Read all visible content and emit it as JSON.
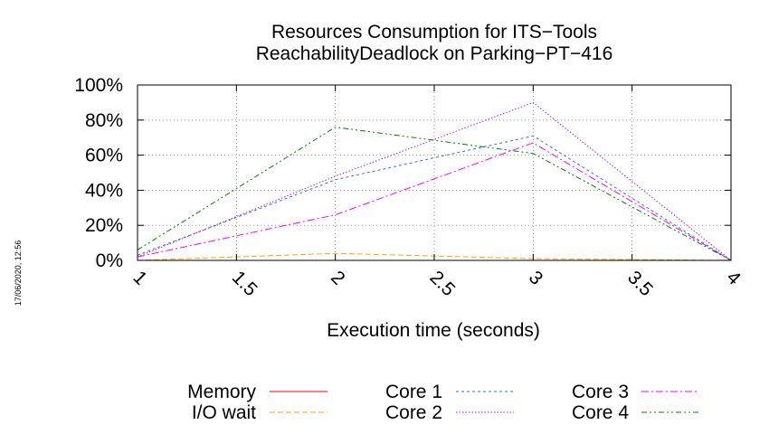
{
  "chart_data": {
    "type": "line",
    "title": [
      "Resources Consumption for ITS−Tools",
      "ReachabilityDeadlock on Parking−PT−416"
    ],
    "xlabel": "Execution time (seconds)",
    "ylabel": "",
    "side_label": "17/06/2020, 12:56",
    "xlim": [
      1,
      4
    ],
    "ylim": [
      0,
      100
    ],
    "x_ticks": [
      "1",
      "1.5",
      "2",
      "2.5",
      "3",
      "3.5",
      "4"
    ],
    "x_tick_values": [
      1,
      1.5,
      2,
      2.5,
      3,
      3.5,
      4
    ],
    "y_ticks": [
      "0%",
      "20%",
      "40%",
      "60%",
      "80%",
      "100%"
    ],
    "y_tick_values": [
      0,
      20,
      40,
      60,
      80,
      100
    ],
    "grid": true,
    "legend_position": "bottom",
    "x": [
      1,
      2,
      3,
      4
    ],
    "series": [
      {
        "name": "Memory",
        "values": [
          0,
          0,
          0,
          0
        ],
        "color": "#ff0000",
        "dash": ""
      },
      {
        "name": "I/O wait",
        "values": [
          0,
          4,
          1,
          0
        ],
        "color": "#ffa500",
        "dash": "6,3"
      },
      {
        "name": "Core 1",
        "values": [
          3,
          46,
          71,
          0
        ],
        "color": "#4169e1",
        "dash": "3,3"
      },
      {
        "name": "Core 2",
        "values": [
          2,
          48,
          90,
          0
        ],
        "color": "#a020f0",
        "dash": "1.5,2"
      },
      {
        "name": "Core 3",
        "values": [
          2,
          26,
          67,
          0
        ],
        "color": "#ff00ff",
        "dash": "8,3,2,3"
      },
      {
        "name": "Core 4",
        "values": [
          6,
          76,
          61,
          0
        ],
        "color": "#008000",
        "dash": "6,3,2,3,2,3"
      }
    ]
  }
}
